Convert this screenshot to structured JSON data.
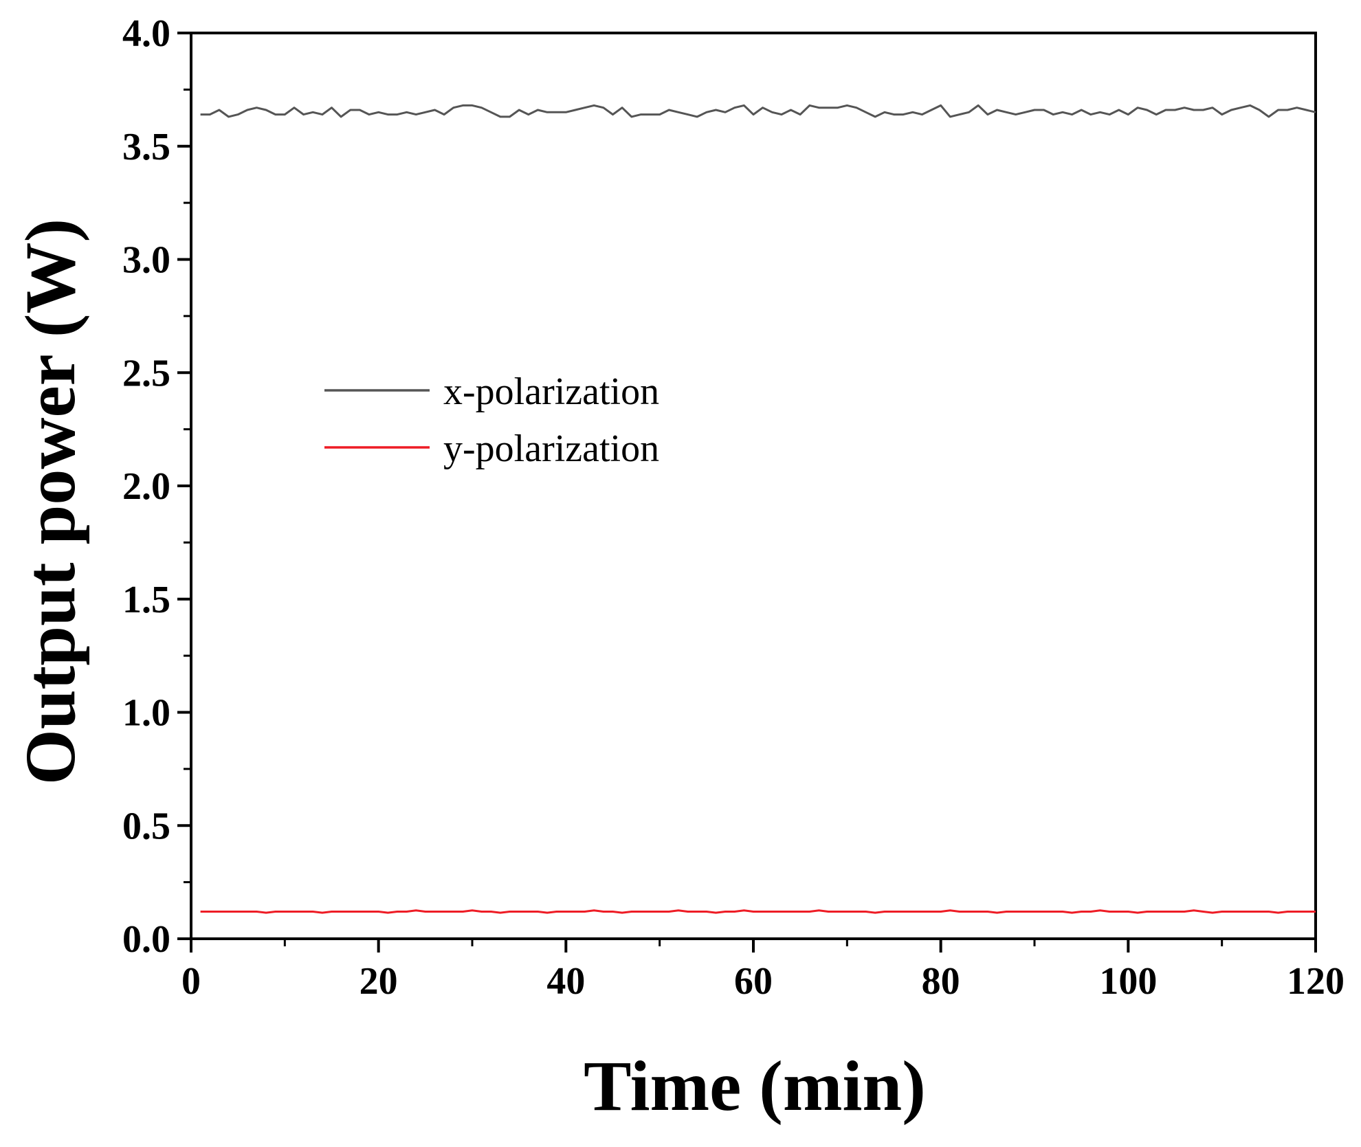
{
  "chart_data": {
    "type": "line",
    "xlabel": "Time (min)",
    "ylabel": "Output power (W)",
    "xlim": [
      0,
      120
    ],
    "ylim": [
      0.0,
      4.0
    ],
    "x_ticks": [
      "0",
      "20",
      "40",
      "60",
      "80",
      "100",
      "120"
    ],
    "x_tick_values": [
      0,
      20,
      40,
      60,
      80,
      100,
      120
    ],
    "y_ticks": [
      "0.0",
      "0.5",
      "1.0",
      "1.5",
      "2.0",
      "2.5",
      "3.0",
      "3.5",
      "4.0"
    ],
    "y_tick_values": [
      0.0,
      0.5,
      1.0,
      1.5,
      2.0,
      2.5,
      3.0,
      3.5,
      4.0
    ],
    "grid": false,
    "legend_position": "center-left",
    "series": [
      {
        "name": "x-polarization",
        "color": "#555555",
        "x": [
          1,
          2,
          3,
          4,
          5,
          6,
          7,
          8,
          9,
          10,
          11,
          12,
          13,
          14,
          15,
          16,
          17,
          18,
          19,
          20,
          21,
          22,
          23,
          24,
          25,
          26,
          27,
          28,
          29,
          30,
          31,
          32,
          33,
          34,
          35,
          36,
          37,
          38,
          39,
          40,
          41,
          42,
          43,
          44,
          45,
          46,
          47,
          48,
          49,
          50,
          51,
          52,
          53,
          54,
          55,
          56,
          57,
          58,
          59,
          60,
          61,
          62,
          63,
          64,
          65,
          66,
          67,
          68,
          69,
          70,
          71,
          72,
          73,
          74,
          75,
          76,
          77,
          78,
          79,
          80,
          81,
          82,
          83,
          84,
          85,
          86,
          87,
          88,
          89,
          90,
          91,
          92,
          93,
          94,
          95,
          96,
          97,
          98,
          99,
          100,
          101,
          102,
          103,
          104,
          105,
          106,
          107,
          108,
          109,
          110,
          111,
          112,
          113,
          114,
          115,
          116,
          117,
          118,
          119,
          120
        ],
        "y": [
          3.64,
          3.64,
          3.66,
          3.63,
          3.64,
          3.66,
          3.67,
          3.66,
          3.64,
          3.64,
          3.67,
          3.64,
          3.65,
          3.64,
          3.67,
          3.63,
          3.66,
          3.66,
          3.64,
          3.65,
          3.64,
          3.64,
          3.65,
          3.64,
          3.65,
          3.66,
          3.64,
          3.67,
          3.68,
          3.68,
          3.67,
          3.65,
          3.63,
          3.63,
          3.66,
          3.64,
          3.66,
          3.65,
          3.65,
          3.65,
          3.66,
          3.67,
          3.68,
          3.67,
          3.64,
          3.67,
          3.63,
          3.64,
          3.64,
          3.64,
          3.66,
          3.65,
          3.64,
          3.63,
          3.65,
          3.66,
          3.65,
          3.67,
          3.68,
          3.64,
          3.67,
          3.65,
          3.64,
          3.66,
          3.64,
          3.68,
          3.67,
          3.67,
          3.67,
          3.68,
          3.67,
          3.65,
          3.63,
          3.65,
          3.64,
          3.64,
          3.65,
          3.64,
          3.66,
          3.68,
          3.63,
          3.64,
          3.65,
          3.68,
          3.64,
          3.66,
          3.65,
          3.64,
          3.65,
          3.66,
          3.66,
          3.64,
          3.65,
          3.64,
          3.66,
          3.64,
          3.65,
          3.64,
          3.66,
          3.64,
          3.67,
          3.66,
          3.64,
          3.66,
          3.66,
          3.67,
          3.66,
          3.66,
          3.67,
          3.64,
          3.66,
          3.67,
          3.68,
          3.66,
          3.63,
          3.66,
          3.66,
          3.67,
          3.66,
          3.65
        ]
      },
      {
        "name": "y-polarization",
        "color": "#ee1c25",
        "x": [
          1,
          2,
          3,
          4,
          5,
          6,
          7,
          8,
          9,
          10,
          11,
          12,
          13,
          14,
          15,
          16,
          17,
          18,
          19,
          20,
          21,
          22,
          23,
          24,
          25,
          26,
          27,
          28,
          29,
          30,
          31,
          32,
          33,
          34,
          35,
          36,
          37,
          38,
          39,
          40,
          41,
          42,
          43,
          44,
          45,
          46,
          47,
          48,
          49,
          50,
          51,
          52,
          53,
          54,
          55,
          56,
          57,
          58,
          59,
          60,
          61,
          62,
          63,
          64,
          65,
          66,
          67,
          68,
          69,
          70,
          71,
          72,
          73,
          74,
          75,
          76,
          77,
          78,
          79,
          80,
          81,
          82,
          83,
          84,
          85,
          86,
          87,
          88,
          89,
          90,
          91,
          92,
          93,
          94,
          95,
          96,
          97,
          98,
          99,
          100,
          101,
          102,
          103,
          104,
          105,
          106,
          107,
          108,
          109,
          110,
          111,
          112,
          113,
          114,
          115,
          116,
          117,
          118,
          119,
          120
        ],
        "y": [
          0.12,
          0.12,
          0.12,
          0.12,
          0.12,
          0.12,
          0.12,
          0.115,
          0.12,
          0.12,
          0.12,
          0.12,
          0.12,
          0.115,
          0.12,
          0.12,
          0.12,
          0.12,
          0.12,
          0.12,
          0.115,
          0.12,
          0.12,
          0.125,
          0.12,
          0.12,
          0.12,
          0.12,
          0.12,
          0.125,
          0.12,
          0.12,
          0.115,
          0.12,
          0.12,
          0.12,
          0.12,
          0.115,
          0.12,
          0.12,
          0.12,
          0.12,
          0.125,
          0.12,
          0.12,
          0.115,
          0.12,
          0.12,
          0.12,
          0.12,
          0.12,
          0.125,
          0.12,
          0.12,
          0.12,
          0.115,
          0.12,
          0.12,
          0.125,
          0.12,
          0.12,
          0.12,
          0.12,
          0.12,
          0.12,
          0.12,
          0.125,
          0.12,
          0.12,
          0.12,
          0.12,
          0.12,
          0.115,
          0.12,
          0.12,
          0.12,
          0.12,
          0.12,
          0.12,
          0.12,
          0.125,
          0.12,
          0.12,
          0.12,
          0.12,
          0.115,
          0.12,
          0.12,
          0.12,
          0.12,
          0.12,
          0.12,
          0.12,
          0.115,
          0.12,
          0.12,
          0.125,
          0.12,
          0.12,
          0.12,
          0.115,
          0.12,
          0.12,
          0.12,
          0.12,
          0.12,
          0.125,
          0.12,
          0.115,
          0.12,
          0.12,
          0.12,
          0.12,
          0.12,
          0.12,
          0.115,
          0.12,
          0.12,
          0.12,
          0.12
        ]
      }
    ]
  }
}
